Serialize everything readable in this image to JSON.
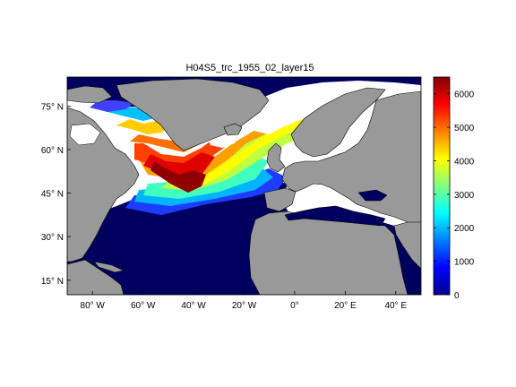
{
  "title": "H04S5_trc_1955_02_layer15",
  "map": {
    "lon_range": [
      -90,
      50
    ],
    "lat_range": [
      10,
      85
    ],
    "lon_ticks": [
      {
        "value": -80,
        "label": "80° W"
      },
      {
        "value": -60,
        "label": "60° W"
      },
      {
        "value": -40,
        "label": "40° W"
      },
      {
        "value": -20,
        "label": "20° W"
      },
      {
        "value": 0,
        "label": "0°"
      },
      {
        "value": 20,
        "label": "20° E"
      },
      {
        "value": 40,
        "label": "40° E"
      }
    ],
    "lat_ticks": [
      {
        "value": 75,
        "label": "75° N"
      },
      {
        "value": 60,
        "label": "60° N"
      },
      {
        "value": 45,
        "label": "45° N"
      },
      {
        "value": 30,
        "label": "30° N"
      },
      {
        "value": 15,
        "label": "15° N"
      }
    ],
    "land_color": "#999999",
    "nodata_color": "#ffffff"
  },
  "colorbar": {
    "min": 0,
    "max": 6500,
    "ticks": [
      0,
      1000,
      2000,
      3000,
      4000,
      5000,
      6000
    ],
    "colormap": "jet"
  }
}
